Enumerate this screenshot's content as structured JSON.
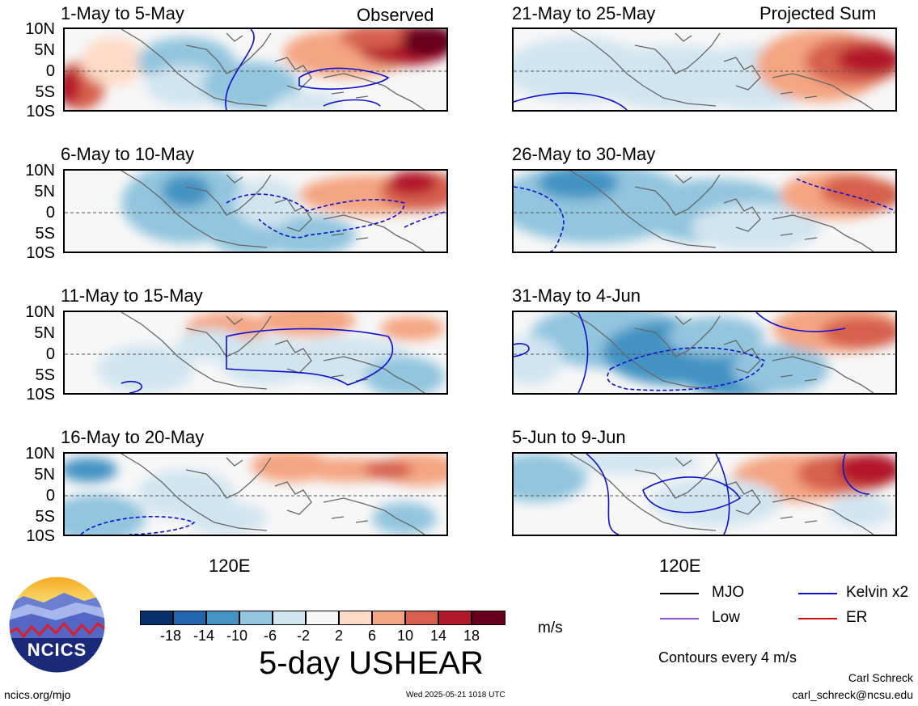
{
  "colors": {
    "scale": [
      "#08306b",
      "#2166ac",
      "#4393c3",
      "#92c5de",
      "#d1e5f0",
      "#f7f7f7",
      "#fddbc7",
      "#f4a582",
      "#d6604d",
      "#b2182b",
      "#67001f"
    ],
    "mjo": "#000000",
    "low": "#9a4fd0",
    "kelvin": "#1010d0",
    "er": "#d01010"
  },
  "titles": {
    "observed": "Observed",
    "projected": "Projected Sum"
  },
  "lat_labels": [
    "10N",
    "5N",
    "0",
    "5S",
    "10S"
  ],
  "lon_label": "120E",
  "panels_left": [
    {
      "date": "1-May to 5-May",
      "pattern": "p1"
    },
    {
      "date": "6-May to 10-May",
      "pattern": "p2"
    },
    {
      "date": "11-May to 15-May",
      "pattern": "p3"
    },
    {
      "date": "16-May to 20-May",
      "pattern": "p4"
    }
  ],
  "panels_right": [
    {
      "date": "21-May to 25-May",
      "pattern": "p5"
    },
    {
      "date": "26-May to 30-May",
      "pattern": "p6"
    },
    {
      "date": "31-May to 4-Jun",
      "pattern": "p7"
    },
    {
      "date": "5-Jun to 9-Jun",
      "pattern": "p8"
    }
  ],
  "colorbar": {
    "ticks": [
      "-18",
      "-14",
      "-10",
      "-6",
      "-2",
      "2",
      "6",
      "10",
      "14",
      "18"
    ],
    "unit": "m/s"
  },
  "legend": {
    "mjo": "MJO",
    "kelvin": "Kelvin x2",
    "low": "Low",
    "er": "ER",
    "contours": "Contours every 4 m/s"
  },
  "main_title": "5-day USHEAR",
  "logo_text": "NCICS",
  "footer": {
    "left": "ncics.org/mjo",
    "center": "Wed 2025-05-21 1018 UTC",
    "author": "Carl Schreck",
    "email": "carl_schreck@ncsu.edu"
  }
}
